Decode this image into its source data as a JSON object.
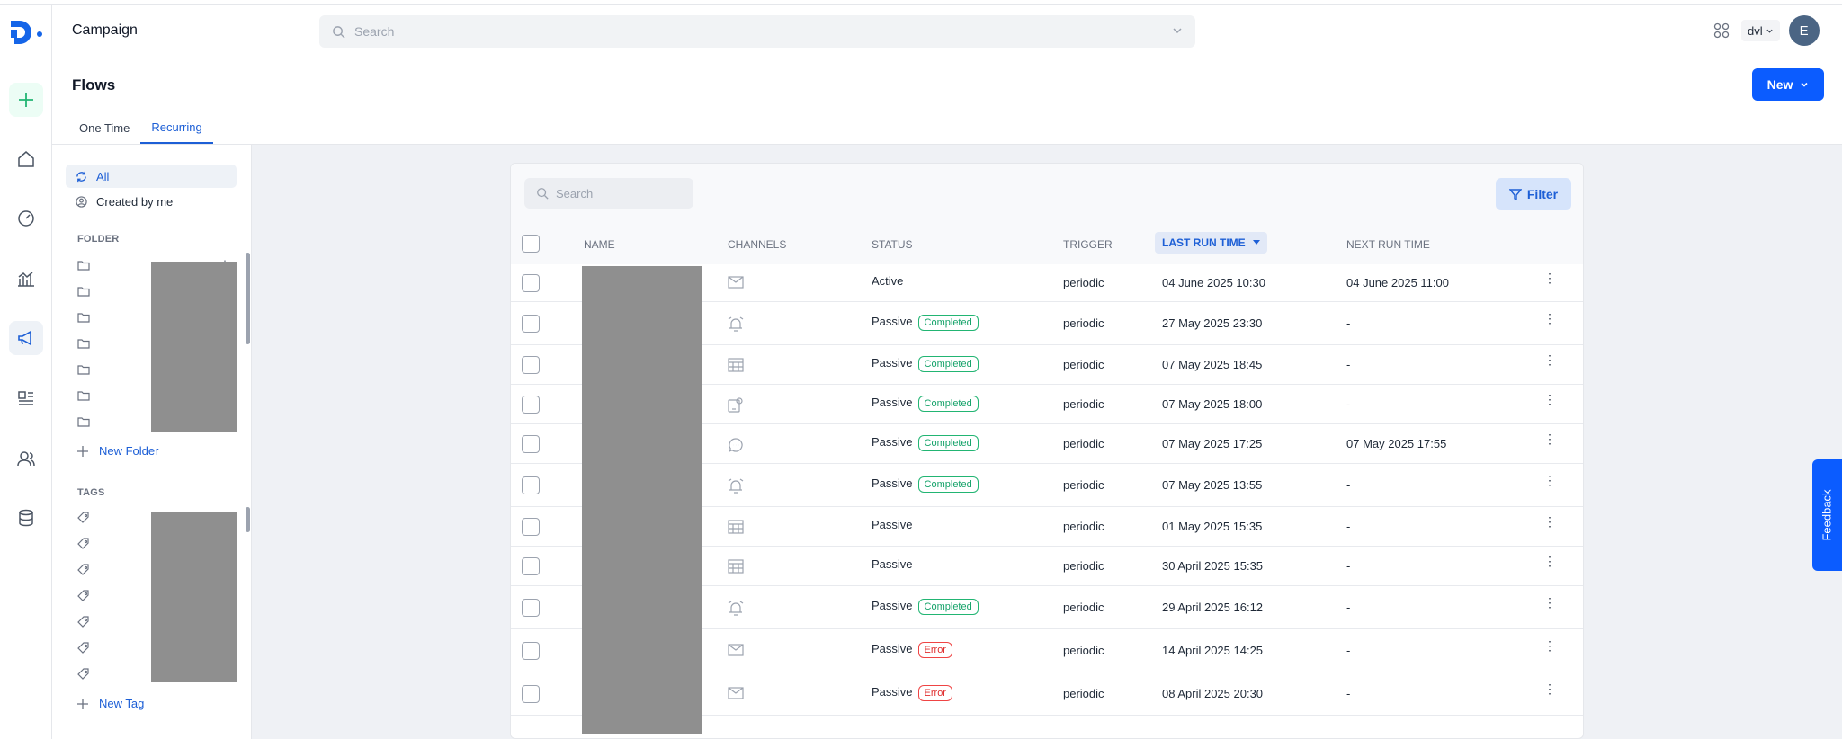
{
  "app": {
    "title": "Campaign"
  },
  "header": {
    "search_placeholder": "Search",
    "org": "dvl",
    "avatar_initial": "E"
  },
  "page": {
    "title": "Flows",
    "new_button": "New"
  },
  "tabs": [
    {
      "label": "One Time",
      "active": false
    },
    {
      "label": "Recurring",
      "active": true
    }
  ],
  "sidebar": {
    "filters": [
      {
        "label": "All",
        "icon": "sync-icon",
        "active": true
      },
      {
        "label": "Created by me",
        "icon": "user-circle-icon",
        "active": false
      }
    ],
    "folder_heading": "FOLDER",
    "new_folder": "New Folder",
    "tags_heading": "TAGS",
    "new_tag": "New Tag"
  },
  "table": {
    "search_placeholder": "Search",
    "filter_button": "Filter",
    "columns": {
      "name": "NAME",
      "channels": "CHANNELS",
      "status": "STATUS",
      "trigger": "TRIGGER",
      "last_run": "LAST RUN TIME",
      "next_run": "NEXT RUN TIME"
    },
    "rows": [
      {
        "channel": "email-icon",
        "status": "Active",
        "badge": "",
        "trigger": "periodic",
        "last_run": "04 June 2025 10:30",
        "next_run": "04 June 2025 11:00"
      },
      {
        "channel": "alarm-icon",
        "status": "Passive",
        "badge": "Completed",
        "trigger": "periodic",
        "last_run": "27 May 2025 23:30",
        "next_run": "-"
      },
      {
        "channel": "calendar-grid-icon",
        "status": "Passive",
        "badge": "Completed",
        "trigger": "periodic",
        "last_run": "07 May 2025 18:45",
        "next_run": "-"
      },
      {
        "channel": "device-notification-icon",
        "status": "Passive",
        "badge": "Completed",
        "trigger": "periodic",
        "last_run": "07 May 2025 18:00",
        "next_run": "-"
      },
      {
        "channel": "chat-bubble-icon",
        "status": "Passive",
        "badge": "Completed",
        "trigger": "periodic",
        "last_run": "07 May 2025 17:25",
        "next_run": "07 May 2025 17:55"
      },
      {
        "channel": "alarm-icon",
        "status": "Passive",
        "badge": "Completed",
        "trigger": "periodic",
        "last_run": "07 May 2025 13:55",
        "next_run": "-"
      },
      {
        "channel": "calendar-grid-icon",
        "status": "Passive",
        "badge": "",
        "trigger": "periodic",
        "last_run": "01 May 2025 15:35",
        "next_run": "-"
      },
      {
        "channel": "calendar-grid-icon",
        "status": "Passive",
        "badge": "",
        "trigger": "periodic",
        "last_run": "30 April 2025 15:35",
        "next_run": "-"
      },
      {
        "channel": "alarm-icon",
        "status": "Passive",
        "badge": "Completed",
        "trigger": "periodic",
        "last_run": "29 April 2025 16:12",
        "next_run": "-"
      },
      {
        "channel": "email-icon",
        "status": "Passive",
        "badge": "Error",
        "trigger": "periodic",
        "last_run": "14 April 2025 14:25",
        "next_run": "-"
      },
      {
        "channel": "email-icon",
        "status": "Passive",
        "badge": "Error",
        "trigger": "periodic",
        "last_run": "08 April 2025 20:30",
        "next_run": "-"
      }
    ]
  },
  "feedback": {
    "label": "Feedback"
  },
  "colors": {
    "primary": "#0b5cff",
    "accent_link": "#1d5fd6",
    "success": "#16a36a",
    "error": "#e02d2d"
  }
}
